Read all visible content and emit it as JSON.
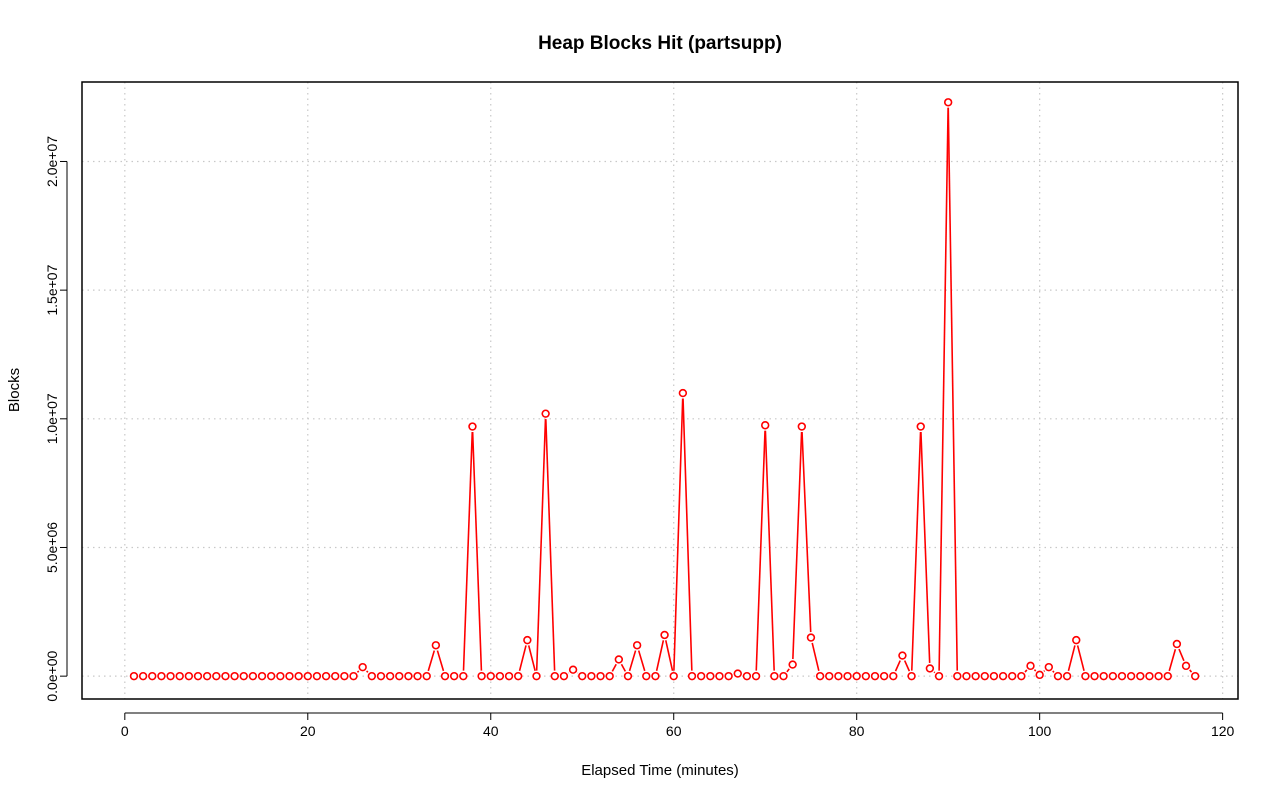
{
  "chart_data": {
    "type": "line",
    "title": "Heap Blocks Hit (partsupp)",
    "xlabel": "Elapsed Time (minutes)",
    "ylabel": "Blocks",
    "xlim": [
      -4.68,
      121.68
    ],
    "ylim": [
      -888000,
      23088000
    ],
    "xticks": [
      0,
      20,
      40,
      60,
      80,
      100,
      120
    ],
    "xtick_labels": [
      "0",
      "20",
      "40",
      "60",
      "80",
      "100",
      "120"
    ],
    "yticks": [
      0,
      5000000,
      10000000,
      15000000,
      20000000
    ],
    "ytick_labels": [
      "0.0e+00",
      "5.0e+06",
      "1.0e+07",
      "1.5e+07",
      "2.0e+07"
    ],
    "grid": true,
    "color": "#ff0000",
    "series": [
      {
        "x": [
          1,
          2,
          3,
          4,
          5,
          6,
          7,
          8,
          9,
          10,
          11,
          12,
          13,
          14,
          15,
          16,
          17,
          18,
          19,
          20,
          21,
          22,
          23,
          24,
          25,
          26,
          27,
          28,
          29,
          30,
          31,
          32,
          33,
          34,
          35,
          36,
          37,
          38,
          39,
          40,
          41,
          42,
          43,
          44,
          45,
          46,
          47,
          48,
          49,
          50,
          51,
          52,
          53,
          54,
          55,
          56,
          57,
          58,
          59,
          60,
          61,
          62,
          63,
          64,
          65,
          66,
          67,
          68,
          69,
          70,
          71,
          72,
          73,
          74,
          75,
          76,
          77,
          78,
          79,
          80,
          81,
          82,
          83,
          84,
          85,
          86,
          87,
          88,
          89,
          90,
          91,
          92,
          93,
          94,
          95,
          96,
          97,
          98,
          99,
          100,
          101,
          102,
          103,
          104,
          105,
          106,
          107,
          108,
          109,
          110,
          111,
          112,
          113,
          114,
          115,
          116,
          117
        ],
        "values": [
          0,
          0,
          0,
          0,
          0,
          0,
          0,
          0,
          0,
          0,
          0,
          0,
          0,
          0,
          0,
          0,
          0,
          0,
          0,
          0,
          0,
          0,
          0,
          0,
          0,
          350000,
          0,
          0,
          0,
          0,
          0,
          0,
          0,
          1200000,
          0,
          0,
          0,
          9700000,
          0,
          0,
          0,
          0,
          0,
          1400000,
          0,
          10200000,
          0,
          0,
          250000,
          0,
          0,
          0,
          0,
          650000,
          0,
          1200000,
          0,
          0,
          1600000,
          0,
          11000000,
          0,
          0,
          0,
          0,
          0,
          100000,
          0,
          0,
          9750000,
          0,
          0,
          450000,
          9700000,
          1500000,
          0,
          0,
          0,
          0,
          0,
          0,
          0,
          0,
          0,
          800000,
          0,
          9700000,
          300000,
          0,
          22300000,
          0,
          0,
          0,
          0,
          0,
          0,
          0,
          0,
          400000,
          50000,
          350000,
          0,
          0,
          1400000,
          0,
          0,
          0,
          0,
          0,
          0,
          0,
          0,
          0,
          0,
          1250000,
          400000,
          0
        ]
      }
    ]
  }
}
